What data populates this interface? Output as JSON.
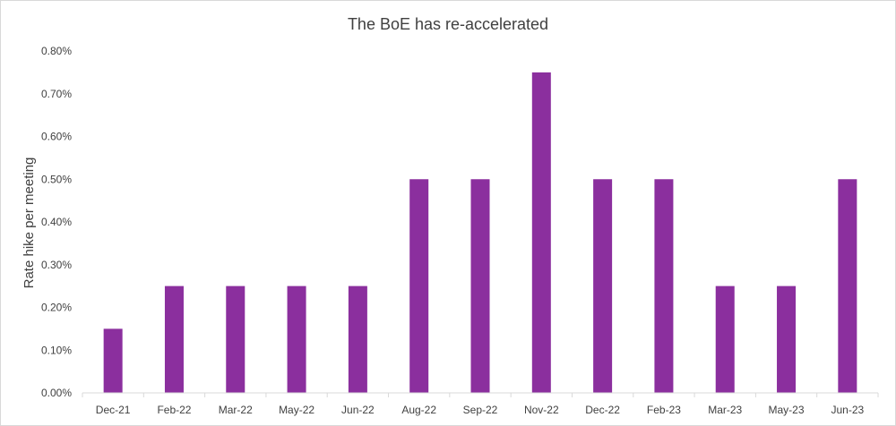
{
  "chart_data": {
    "type": "bar",
    "title": "The BoE has re-accelerated",
    "xlabel": "",
    "ylabel": "Rate hike per meeting",
    "categories": [
      "Dec-21",
      "Feb-22",
      "Mar-22",
      "May-22",
      "Jun-22",
      "Aug-22",
      "Sep-22",
      "Nov-22",
      "Dec-22",
      "Feb-23",
      "Mar-23",
      "May-23",
      "Jun-23"
    ],
    "values": [
      0.15,
      0.25,
      0.25,
      0.25,
      0.25,
      0.5,
      0.5,
      0.75,
      0.5,
      0.5,
      0.25,
      0.25,
      0.5
    ],
    "value_unit": "%",
    "ylim": [
      0,
      0.8
    ],
    "yticks": [
      "0.00%",
      "0.10%",
      "0.20%",
      "0.30%",
      "0.40%",
      "0.50%",
      "0.60%",
      "0.70%",
      "0.80%"
    ],
    "bar_color": "#8b2f9e",
    "grid": false,
    "legend": "none"
  }
}
